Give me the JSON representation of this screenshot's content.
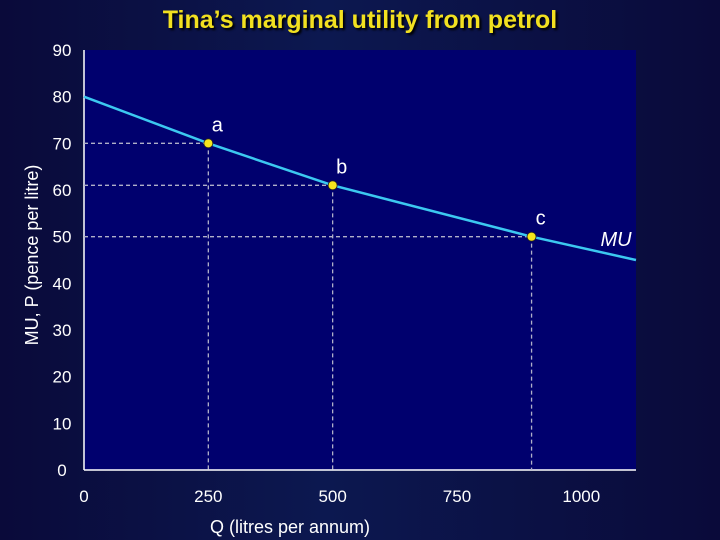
{
  "chart_data": {
    "type": "line",
    "title": "Tina’s marginal utility from petrol",
    "xlabel": "Q (litres per annum)",
    "ylabel": "MU, P (pence per litre)",
    "xlim": [
      0,
      1110
    ],
    "ylim": [
      0,
      90
    ],
    "xticks": [
      0,
      250,
      500,
      750,
      1000
    ],
    "yticks": [
      0,
      10,
      20,
      30,
      40,
      50,
      60,
      70,
      80,
      90
    ],
    "series": [
      {
        "name": "MU",
        "color": "#3cc8f0",
        "x": [
          0,
          250,
          500,
          900,
          1110
        ],
        "y": [
          80,
          70,
          61,
          50,
          45
        ]
      }
    ],
    "points": [
      {
        "label": "a",
        "x": 250,
        "y": 70
      },
      {
        "label": "b",
        "x": 500,
        "y": 61
      },
      {
        "label": "c",
        "x": 900,
        "y": 50
      }
    ],
    "grid": false,
    "point_color": "#f5e51c"
  }
}
